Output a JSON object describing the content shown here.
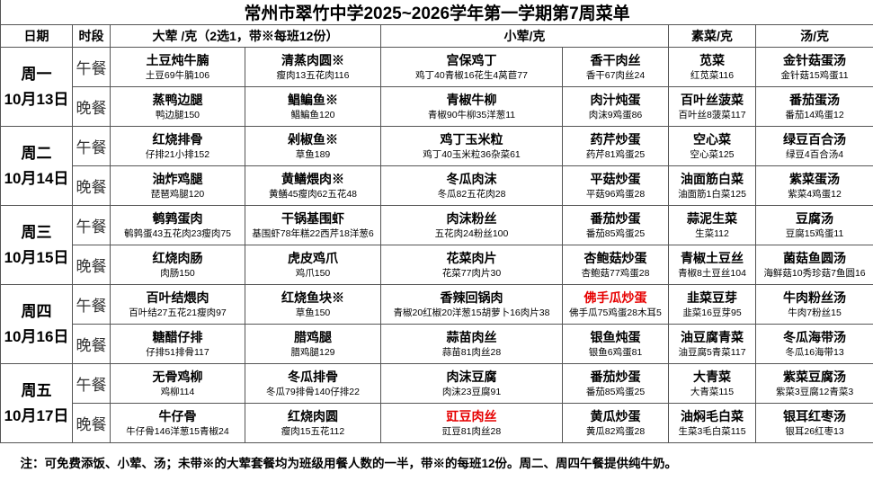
{
  "title": "常州市翠竹中学2025~2026学年第一学期第7周菜单",
  "headers": [
    "日期",
    "时段",
    "大荤 /克（2选1，带※每班12份）",
    "小荤/克",
    "素菜/克",
    "汤/克"
  ],
  "days": [
    {
      "day": "周一",
      "date": "10月13日",
      "meals": [
        {
          "label": "午餐",
          "dishes": [
            {
              "name": "土豆炖牛腩",
              "detail": "土豆69牛腩106"
            },
            {
              "name": "清蒸肉圆※",
              "detail": "瘦肉13五花肉116"
            },
            {
              "name": "宫保鸡丁",
              "detail": "鸡丁40青椒16花生4莴苣77"
            },
            {
              "name": "香干肉丝",
              "detail": "香干67肉丝24"
            },
            {
              "name": "苋菜",
              "detail": "红苋菜116"
            },
            {
              "name": "金针菇蛋汤",
              "detail": "金针菇15鸡蛋11"
            }
          ]
        },
        {
          "label": "晚餐",
          "dishes": [
            {
              "name": "蒸鸭边腿",
              "detail": "鸭边腿150"
            },
            {
              "name": "鲳鳊鱼※",
              "detail": "鲳鳊鱼120"
            },
            {
              "name": "青椒牛柳",
              "detail": "青椒90牛柳35洋葱11"
            },
            {
              "name": "肉汁炖蛋",
              "detail": "肉沫9鸡蛋86"
            },
            {
              "name": "百叶丝菠菜",
              "detail": "百叶丝8菠菜117"
            },
            {
              "name": "番茄蛋汤",
              "detail": "番茄14鸡蛋12"
            }
          ]
        }
      ]
    },
    {
      "day": "周二",
      "date": "10月14日",
      "meals": [
        {
          "label": "午餐",
          "dishes": [
            {
              "name": "红烧排骨",
              "detail": "仔排21小排152"
            },
            {
              "name": "剁椒鱼※",
              "detail": "草鱼189"
            },
            {
              "name": "鸡丁玉米粒",
              "detail": "鸡丁40玉米粒36杂菜61"
            },
            {
              "name": "药芹炒蛋",
              "detail": "药芹81鸡蛋25"
            },
            {
              "name": "空心菜",
              "detail": "空心菜125"
            },
            {
              "name": "绿豆百合汤",
              "detail": "绿豆4百合汤4"
            }
          ]
        },
        {
          "label": "晚餐",
          "dishes": [
            {
              "name": "油炸鸡腿",
              "detail": "琵琶鸡腿120"
            },
            {
              "name": "黄鳝煨肉※",
              "detail": "黄鳝45瘦肉62五花48"
            },
            {
              "name": "冬瓜肉沫",
              "detail": "冬瓜82五花肉28"
            },
            {
              "name": "平菇炒蛋",
              "detail": "平菇96鸡蛋28"
            },
            {
              "name": "油面筋白菜",
              "detail": "油面筋1白菜125"
            },
            {
              "name": "紫菜蛋汤",
              "detail": "紫菜4鸡蛋12"
            }
          ]
        }
      ]
    },
    {
      "day": "周三",
      "date": "10月15日",
      "meals": [
        {
          "label": "午餐",
          "dishes": [
            {
              "name": "鹌鹑蛋肉",
              "detail": "鹌鹑蛋43五花肉23瘦肉75"
            },
            {
              "name": "干锅基围虾",
              "detail": "基围虾78年糕22西芹18洋葱6"
            },
            {
              "name": "肉沫粉丝",
              "detail": "五花肉24粉丝100"
            },
            {
              "name": "番茄炒蛋",
              "detail": "番茄85鸡蛋25"
            },
            {
              "name": "蒜泥生菜",
              "detail": "生菜112"
            },
            {
              "name": "豆腐汤",
              "detail": "豆腐15鸡蛋11"
            }
          ]
        },
        {
          "label": "晚餐",
          "dishes": [
            {
              "name": "红烧肉肠",
              "detail": "肉肠150"
            },
            {
              "name": "虎皮鸡爪",
              "detail": "鸡爪150"
            },
            {
              "name": "花菜肉片",
              "detail": "花菜77肉片30"
            },
            {
              "name": "杏鲍菇炒蛋",
              "detail": "杏鲍菇77鸡蛋28"
            },
            {
              "name": "青椒土豆丝",
              "detail": "青椒8土豆丝104"
            },
            {
              "name": "菌菇鱼圆汤",
              "detail": "海鲜菇10秀珍菇7鱼圆16"
            }
          ]
        }
      ]
    },
    {
      "day": "周四",
      "date": "10月16日",
      "meals": [
        {
          "label": "午餐",
          "dishes": [
            {
              "name": "百叶结煨肉",
              "detail": "百叶结27五花21瘦肉97"
            },
            {
              "name": "红烧鱼块※",
              "detail": "草鱼150"
            },
            {
              "name": "香辣回锅肉",
              "detail": "青椒20红椒20洋葱15胡萝卜16肉片38"
            },
            {
              "name": "佛手瓜炒蛋",
              "detail": "佛手瓜75鸡蛋28木耳5",
              "color": "#e60000"
            },
            {
              "name": "韭菜豆芽",
              "detail": "韭菜16豆芽95"
            },
            {
              "name": "牛肉粉丝汤",
              "detail": "牛肉7粉丝15"
            }
          ]
        },
        {
          "label": "晚餐",
          "dishes": [
            {
              "name": "糖醋仔排",
              "detail": "仔排51排骨117"
            },
            {
              "name": "腊鸡腿",
              "detail": "腊鸡腿129"
            },
            {
              "name": "蒜苗肉丝",
              "detail": "蒜苗81肉丝28"
            },
            {
              "name": "银鱼炖蛋",
              "detail": "银鱼6鸡蛋81"
            },
            {
              "name": "油豆腐青菜",
              "detail": "油豆腐5青菜117"
            },
            {
              "name": "冬瓜海带汤",
              "detail": "冬瓜16海带13"
            }
          ]
        }
      ]
    },
    {
      "day": "周五",
      "date": "10月17日",
      "meals": [
        {
          "label": "午餐",
          "dishes": [
            {
              "name": "无骨鸡柳",
              "detail": "鸡柳114"
            },
            {
              "name": "冬瓜排骨",
              "detail": "冬瓜79排骨140仔排22"
            },
            {
              "name": "肉沫豆腐",
              "detail": "肉沫23豆腐91"
            },
            {
              "name": "番茄炒蛋",
              "detail": "番茄85鸡蛋25"
            },
            {
              "name": "大青菜",
              "detail": "大青菜115"
            },
            {
              "name": "紫菜豆腐汤",
              "detail": "紫菜3豆腐12青菜3"
            }
          ]
        },
        {
          "label": "晚餐",
          "dishes": [
            {
              "name": "牛仔骨",
              "detail": "牛仔骨146洋葱15青椒24"
            },
            {
              "name": "红烧肉圆",
              "detail": "瘦肉15五花112"
            },
            {
              "name": "豇豆肉丝",
              "detail": "豇豆81肉丝28",
              "color": "#e60000"
            },
            {
              "name": "黄瓜炒蛋",
              "detail": "黄瓜82鸡蛋28"
            },
            {
              "name": "油焖毛白菜",
              "detail": "生菜3毛白菜115"
            },
            {
              "name": "银耳红枣汤",
              "detail": "银耳26红枣13"
            }
          ]
        }
      ]
    }
  ],
  "note": "注：可免费添饭、小荤、汤；未带※的大荤套餐均为班级用餐人数的一半，带※的每班12份。周二、周四午餐提供纯牛奶。"
}
